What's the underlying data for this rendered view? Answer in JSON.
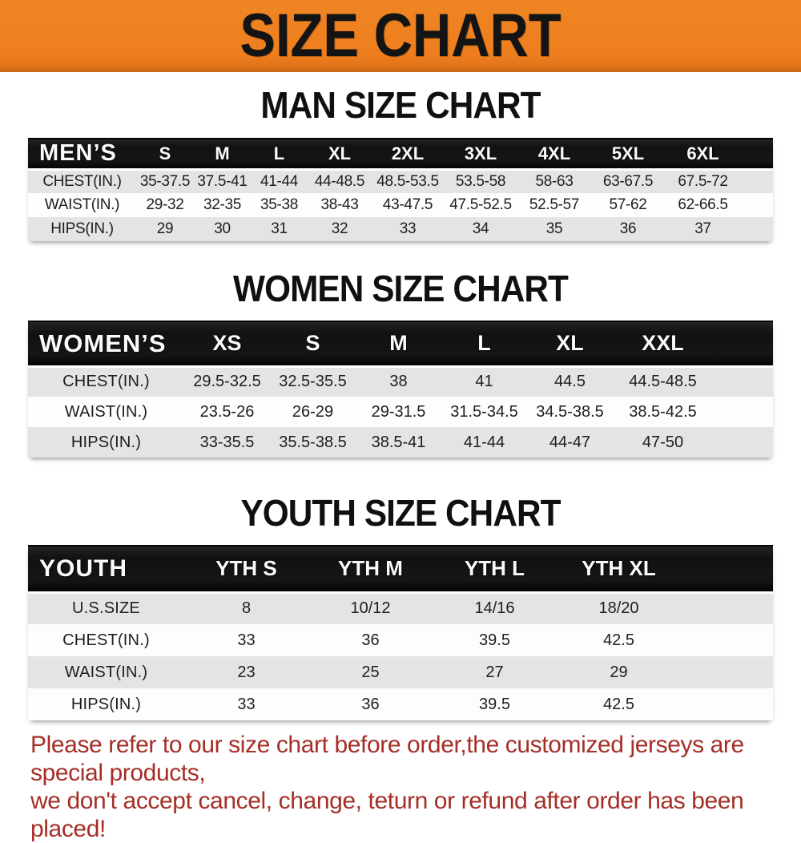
{
  "palette": {
    "banner_orange": "#ED7D1E",
    "header_band_black": "#161616",
    "row_gray": "#E4E4E4",
    "row_white": "#FDFDFD",
    "footer_red": "#A52E26"
  },
  "banner": {
    "title": "SIZE CHART"
  },
  "sections": {
    "men": {
      "heading": "MAN SIZE CHART",
      "table": {
        "header_label": "MEN’S",
        "columns": [
          "S",
          "M",
          "L",
          "XL",
          "2XL",
          "3XL",
          "4XL",
          "5XL",
          "6XL"
        ],
        "rows": [
          {
            "label": "CHEST(IN.)",
            "values": [
              "35-37.5",
              "37.5-41",
              "41-44",
              "44-48.5",
              "48.5-53.5",
              "53.5-58",
              "58-63",
              "63-67.5",
              "67.5-72"
            ]
          },
          {
            "label": "WAIST(IN.)",
            "values": [
              "29-32",
              "32-35",
              "35-38",
              "38-43",
              "43-47.5",
              "47.5-52.5",
              "52.5-57",
              "57-62",
              "62-66.5"
            ]
          },
          {
            "label": "HIPS(IN.)",
            "values": [
              "29",
              "30",
              "31",
              "32",
              "33",
              "34",
              "35",
              "36",
              "37"
            ]
          }
        ]
      }
    },
    "women": {
      "heading": "WOMEN SIZE CHART",
      "table": {
        "header_label": "WOMEN’S",
        "columns": [
          "XS",
          "S",
          "M",
          "L",
          "XL",
          "XXL"
        ],
        "rows": [
          {
            "label": "CHEST(IN.)",
            "values": [
              "29.5-32.5",
              "32.5-35.5",
              "38",
              "41",
              "44.5",
              "44.5-48.5"
            ]
          },
          {
            "label": "WAIST(IN.)",
            "values": [
              "23.5-26",
              "26-29",
              "29-31.5",
              "31.5-34.5",
              "34.5-38.5",
              "38.5-42.5"
            ]
          },
          {
            "label": "HIPS(IN.)",
            "values": [
              "33-35.5",
              "35.5-38.5",
              "38.5-41",
              "41-44",
              "44-47",
              "47-50"
            ]
          }
        ]
      }
    },
    "youth": {
      "heading": "YOUTH SIZE CHART",
      "table": {
        "header_label": "YOUTH",
        "columns": [
          "YTH S",
          "YTH M",
          "YTH L",
          "YTH XL"
        ],
        "rows": [
          {
            "label": "U.S.SIZE",
            "values": [
              "8",
              "10/12",
              "14/16",
              "18/20"
            ]
          },
          {
            "label": "CHEST(IN.)",
            "values": [
              "33",
              "36",
              "39.5",
              "42.5"
            ]
          },
          {
            "label": "WAIST(IN.)",
            "values": [
              "23",
              "25",
              "27",
              "29"
            ]
          },
          {
            "label": "HIPS(IN.)",
            "values": [
              "33",
              "36",
              "39.5",
              "42.5"
            ]
          }
        ]
      }
    }
  },
  "footer": {
    "lines": [
      "Please refer to our size chart before order,the customized jerseys are special products,",
      "we don't accept cancel, change, teturn or refund after order has been placed!"
    ]
  },
  "chart_data": [
    {
      "type": "table",
      "title": "MAN SIZE CHART",
      "columns": [
        "MEN’S",
        "S",
        "M",
        "L",
        "XL",
        "2XL",
        "3XL",
        "4XL",
        "5XL",
        "6XL"
      ],
      "rows": [
        [
          "CHEST(IN.)",
          "35-37.5",
          "37.5-41",
          "41-44",
          "44-48.5",
          "48.5-53.5",
          "53.5-58",
          "58-63",
          "63-67.5",
          "67.5-72"
        ],
        [
          "WAIST(IN.)",
          "29-32",
          "32-35",
          "35-38",
          "38-43",
          "43-47.5",
          "47.5-52.5",
          "52.5-57",
          "57-62",
          "62-66.5"
        ],
        [
          "HIPS(IN.)",
          "29",
          "30",
          "31",
          "32",
          "33",
          "34",
          "35",
          "36",
          "37"
        ]
      ]
    },
    {
      "type": "table",
      "title": "WOMEN SIZE CHART",
      "columns": [
        "WOMEN’S",
        "XS",
        "S",
        "M",
        "L",
        "XL",
        "XXL"
      ],
      "rows": [
        [
          "CHEST(IN.)",
          "29.5-32.5",
          "32.5-35.5",
          "38",
          "41",
          "44.5",
          "44.5-48.5"
        ],
        [
          "WAIST(IN.)",
          "23.5-26",
          "26-29",
          "29-31.5",
          "31.5-34.5",
          "34.5-38.5",
          "38.5-42.5"
        ],
        [
          "HIPS(IN.)",
          "33-35.5",
          "35.5-38.5",
          "38.5-41",
          "41-44",
          "44-47",
          "47-50"
        ]
      ]
    },
    {
      "type": "table",
      "title": "YOUTH SIZE CHART",
      "columns": [
        "YOUTH",
        "YTH S",
        "YTH M",
        "YTH L",
        "YTH XL"
      ],
      "rows": [
        [
          "U.S.SIZE",
          "8",
          "10/12",
          "14/16",
          "18/20"
        ],
        [
          "CHEST(IN.)",
          "33",
          "36",
          "39.5",
          "42.5"
        ],
        [
          "WAIST(IN.)",
          "23",
          "25",
          "27",
          "29"
        ],
        [
          "HIPS(IN.)",
          "33",
          "36",
          "39.5",
          "42.5"
        ]
      ]
    }
  ]
}
